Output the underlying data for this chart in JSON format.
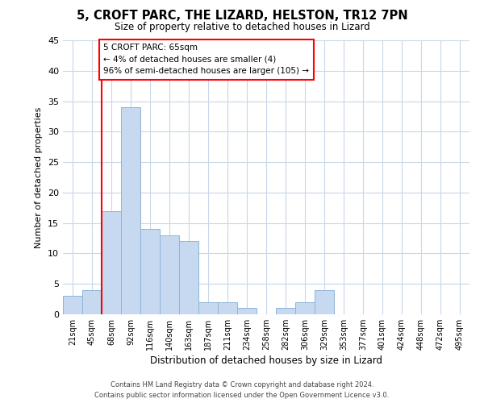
{
  "title": "5, CROFT PARC, THE LIZARD, HELSTON, TR12 7PN",
  "subtitle": "Size of property relative to detached houses in Lizard",
  "xlabel": "Distribution of detached houses by size in Lizard",
  "ylabel": "Number of detached properties",
  "bar_labels": [
    "21sqm",
    "45sqm",
    "68sqm",
    "92sqm",
    "116sqm",
    "140sqm",
    "163sqm",
    "187sqm",
    "211sqm",
    "234sqm",
    "258sqm",
    "282sqm",
    "306sqm",
    "329sqm",
    "353sqm",
    "377sqm",
    "401sqm",
    "424sqm",
    "448sqm",
    "472sqm",
    "495sqm"
  ],
  "bar_values": [
    3,
    4,
    17,
    34,
    14,
    13,
    12,
    2,
    2,
    1,
    0,
    1,
    2,
    4,
    0,
    0,
    0,
    0,
    0,
    0,
    0
  ],
  "bar_color": "#c6d9f0",
  "bar_edge_color": "#8fb4d9",
  "ylim": [
    0,
    45
  ],
  "yticks": [
    0,
    5,
    10,
    15,
    20,
    25,
    30,
    35,
    40,
    45
  ],
  "red_line_x": 1.5,
  "annotation_line1": "5 CROFT PARC: 65sqm",
  "annotation_line2": "← 4% of detached houses are smaller (4)",
  "annotation_line3": "96% of semi-detached houses are larger (105) →",
  "footer_line1": "Contains HM Land Registry data © Crown copyright and database right 2024.",
  "footer_line2": "Contains public sector information licensed under the Open Government Licence v3.0.",
  "background_color": "#ffffff",
  "grid_color": "#c8d8e8"
}
